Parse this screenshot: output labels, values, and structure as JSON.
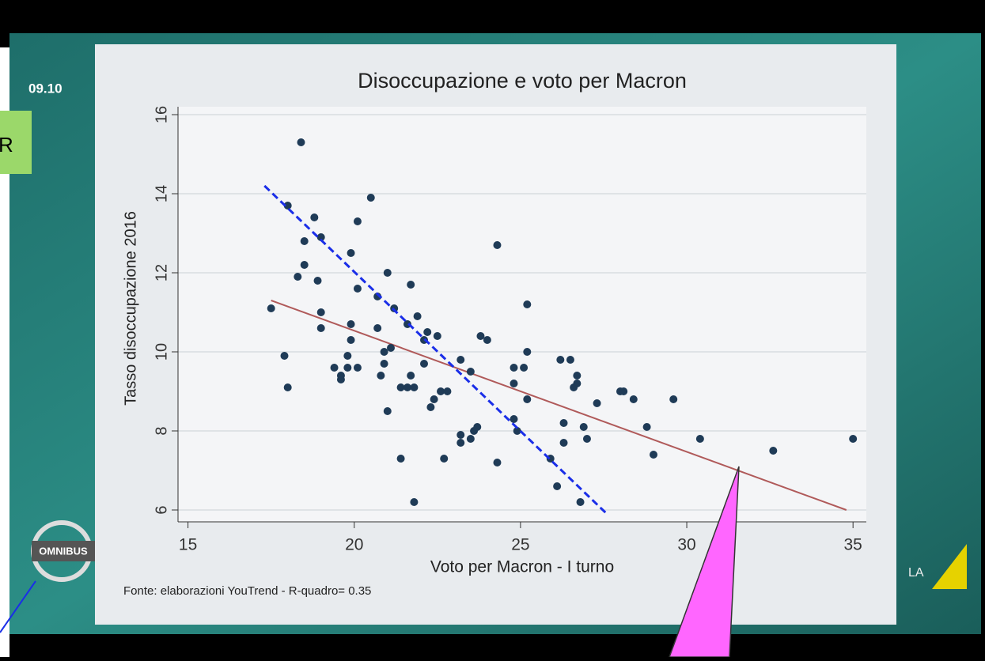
{
  "overlay": {
    "time": "09.10",
    "show": "OMNIBUS",
    "channel": "LA",
    "side_label": "R"
  },
  "chart_data": {
    "type": "scatter",
    "title": "Disoccupazione e voto per Macron",
    "xlabel": "Voto per Macron - I turno",
    "ylabel": "Tasso disoccupazione 2016",
    "note": "Fonte: elaborazioni YouTrend - R-quadro= 0.35",
    "color": "#1f3b57",
    "x": [
      17.5,
      18.4,
      18.0,
      17.9,
      18.0,
      18.8,
      18.5,
      18.5,
      18.3,
      18.9,
      19.0,
      19.0,
      19.0,
      19.4,
      19.6,
      19.6,
      19.8,
      19.8,
      19.9,
      19.9,
      19.9,
      20.1,
      20.1,
      20.1,
      20.5,
      20.7,
      20.7,
      20.8,
      20.9,
      20.9,
      21.0,
      21.1,
      21.0,
      21.2,
      21.4,
      21.4,
      21.6,
      21.6,
      21.7,
      21.7,
      21.8,
      21.9,
      21.8,
      22.1,
      22.1,
      22.2,
      22.3,
      22.4,
      22.5,
      22.6,
      22.8,
      22.7,
      23.2,
      23.2,
      23.2,
      23.5,
      23.5,
      23.6,
      23.7,
      23.8,
      24.0,
      24.3,
      24.3,
      24.8,
      24.8,
      24.8,
      24.9,
      25.1,
      25.2,
      25.2,
      25.2,
      25.9,
      26.1,
      26.2,
      26.5,
      26.3,
      26.3,
      26.6,
      26.7,
      26.7,
      26.8,
      26.9,
      27.0,
      27.3,
      28.0,
      28.1,
      28.4,
      28.8,
      29.0,
      29.6,
      30.4,
      32.6,
      35.0
    ],
    "y": [
      11.1,
      15.3,
      13.7,
      9.9,
      9.1,
      13.4,
      12.8,
      12.2,
      11.9,
      11.8,
      12.9,
      11.0,
      10.6,
      9.6,
      9.4,
      9.3,
      9.6,
      9.9,
      12.5,
      10.7,
      10.3,
      9.6,
      11.6,
      13.3,
      13.9,
      11.4,
      10.6,
      9.4,
      10.0,
      9.7,
      12.0,
      10.1,
      8.5,
      11.1,
      9.1,
      7.3,
      9.1,
      10.7,
      9.4,
      11.7,
      9.1,
      10.9,
      6.2,
      9.7,
      10.3,
      10.5,
      8.6,
      8.8,
      10.4,
      9.0,
      9.0,
      7.3,
      9.8,
      7.9,
      7.7,
      9.5,
      7.8,
      8.0,
      8.1,
      10.4,
      10.3,
      12.7,
      7.2,
      9.6,
      9.2,
      8.3,
      8.0,
      9.6,
      11.2,
      10.0,
      8.8,
      7.3,
      6.6,
      9.8,
      9.8,
      8.2,
      7.7,
      9.1,
      9.2,
      9.4,
      6.2,
      8.1,
      7.8,
      8.7,
      9.0,
      9.0,
      8.8,
      8.1,
      7.4,
      8.8,
      7.8,
      7.5,
      7.8
    ],
    "fit_line": {
      "color": "#b05a5a",
      "x": [
        17.5,
        34.8
      ],
      "y": [
        11.3,
        6.0
      ]
    },
    "annotation_line": {
      "color": "#1a2ee8",
      "x": [
        17.3,
        27.6
      ],
      "y": [
        14.2,
        5.9
      ]
    },
    "xlim": [
      14.7,
      35.4
    ],
    "ylim": [
      5.7,
      16.2
    ],
    "xticks": [
      15,
      20,
      25,
      30,
      35
    ],
    "yticks": [
      6,
      8,
      10,
      12,
      14,
      16
    ],
    "grid": true
  }
}
